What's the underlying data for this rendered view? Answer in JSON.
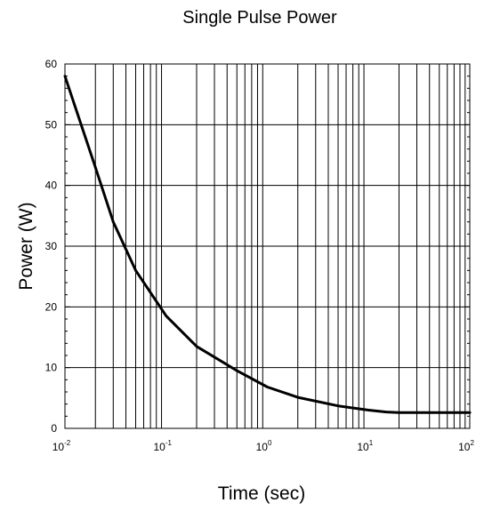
{
  "chart_data": {
    "type": "line",
    "title": "Single Pulse Power",
    "xlabel": "Time (sec)",
    "ylabel": "Power (W)",
    "x_scale": "log",
    "xlim": [
      0.01,
      100
    ],
    "ylim": [
      0,
      60
    ],
    "grid": true,
    "x_ticks": [
      {
        "base": "10",
        "exp": "-2"
      },
      {
        "base": "10",
        "exp": "-1"
      },
      {
        "base": "10",
        "exp": "0"
      },
      {
        "base": "10",
        "exp": "1"
      },
      {
        "base": "10",
        "exp": "2"
      }
    ],
    "y_ticks": [
      "0",
      "10",
      "20",
      "30",
      "40",
      "50",
      "60"
    ],
    "series": [
      {
        "color": "#000000",
        "x": [
          0.01,
          0.02,
          0.03,
          0.05,
          0.1,
          0.2,
          0.5,
          1,
          2,
          5,
          10,
          15,
          20,
          50,
          100
        ],
        "y": [
          58,
          43,
          34,
          26,
          18.5,
          13.5,
          9.5,
          6.8,
          5.1,
          3.7,
          3.0,
          2.7,
          2.6,
          2.6,
          2.6
        ]
      }
    ]
  }
}
